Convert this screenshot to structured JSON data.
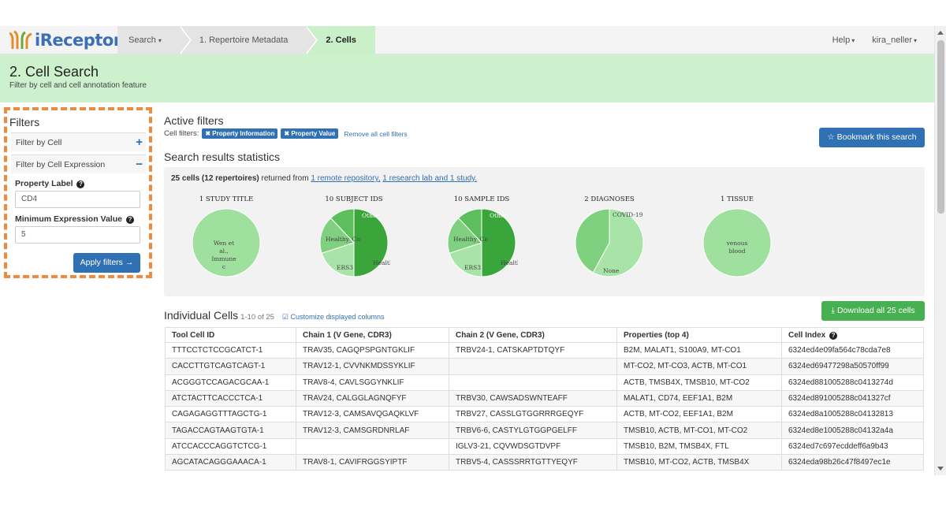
{
  "navbar": {
    "logo_text": "iReceptor",
    "crumbs": [
      {
        "label": "Search",
        "caret": "▾"
      },
      {
        "label": "1. Repertoire Metadata"
      },
      {
        "label": "2. Cells"
      }
    ],
    "help_label": "Help",
    "user_label": "kira_neller",
    "caret": "▾"
  },
  "header": {
    "title": "2. Cell Search",
    "subtitle": "Filter by cell and cell annotation feature"
  },
  "filters": {
    "title": "Filters",
    "row1_label": "Filter by Cell",
    "row1_ctl": "+",
    "row2_label": "Filter by Cell Expression",
    "row2_ctl": "−",
    "property_label": "Property Label",
    "property_value": "CD4",
    "min_label": "Minimum Expression Value",
    "min_value": "5",
    "apply_label": "Apply filters →",
    "help_glyph": "?"
  },
  "active_filters": {
    "title": "Active filters",
    "prefix": "Cell filters:",
    "tags": [
      "✖ Property Information",
      "✖ Property Value"
    ],
    "remove_label": "Remove all cell filters",
    "bookmark_label": "☆ Bookmark this search"
  },
  "stats": {
    "title": "Search results statistics",
    "summary_bold": "25 cells (12 repertoires)",
    "summary_mid": " returned from ",
    "link1": "1 remote repository,",
    "link2": "1 research lab and 1 study.",
    "pies": [
      {
        "title": "1 STUDY TITLE",
        "colors": [
          "#9fe09f"
        ],
        "values": [
          1
        ],
        "labels": [
          "Wen et",
          "al.,",
          "Immune",
          "c"
        ]
      },
      {
        "title": "10 SUBJECT IDS",
        "colors": [
          "#3aa53a",
          "#a8e4a8",
          "#7fd07f",
          "#5cbf5c"
        ],
        "values": [
          0.5,
          0.2,
          0.18,
          0.12
        ],
        "labels": [
          "Other",
          "Healthy_Co",
          "ERS3",
          "Healthy_Co"
        ]
      },
      {
        "title": "10 SAMPLE IDS",
        "colors": [
          "#3aa53a",
          "#a8e4a8",
          "#7fd07f",
          "#5cbf5c"
        ],
        "values": [
          0.5,
          0.2,
          0.18,
          0.12
        ],
        "labels": [
          "Other",
          "Healthy_Co",
          "ERS3",
          "Healthy_Co"
        ]
      },
      {
        "title": "2 DIAGNOSES",
        "colors": [
          "#a8e4a8",
          "#7fd07f"
        ],
        "values": [
          0.58,
          0.42
        ],
        "labels": [
          "None",
          "COVID-19"
        ]
      },
      {
        "title": "1 TISSUE",
        "colors": [
          "#9fe09f"
        ],
        "values": [
          1
        ],
        "labels": [
          "venous",
          "blood"
        ]
      }
    ]
  },
  "individual": {
    "title": "Individual Cells",
    "range": "1-10 of 25",
    "customize_label": "Customize displayed columns",
    "download_label": "Download all 25 cells",
    "columns": [
      "Tool Cell ID",
      "Chain 1 (V Gene, CDR3)",
      "Chain 2 (V Gene, CDR3)",
      "Properties (top 4)",
      "Cell Index"
    ],
    "rows": [
      [
        "TTTCCTCTCCGCATCT-1",
        "TRAV35, CAGQPSPGNTGKLIF",
        "TRBV24-1, CATSKAPTDTQYF",
        "B2M, MALAT1, S100A9, MT-CO1",
        "6324ed4e09fa564c78cda7e8"
      ],
      [
        "CACCTTGTCAGTCAGT-1",
        "TRAV12-1, CVVNKMDSSYKLIF",
        "",
        "MT-CO2, MT-CO3, ACTB, MT-CO1",
        "6324ed69477298a50570ff99"
      ],
      [
        "ACGGGTCCAGACGCAA-1",
        "TRAV8-4, CAVLSGGYNKLIF",
        "",
        "ACTB, TMSB4X, TMSB10, MT-CO2",
        "6324ed881005288c0413274d"
      ],
      [
        "ATCTACTTCACCCTCA-1",
        "TRAV24, CALGGLAGNQFYF",
        "TRBV30, CAWSADSWNTEAFF",
        "MALAT1, CD74, EEF1A1, B2M",
        "6324ed891005288c041327cf"
      ],
      [
        "CAGAGAGGTTTAGCTG-1",
        "TRAV12-3, CAMSAVQGAQKLVF",
        "TRBV27, CASSLGTGGRRRGEQYF",
        "ACTB, MT-CO2, EEF1A1, B2M",
        "6324ed8a1005288c04132813"
      ],
      [
        "TAGACCAGTAAGTGTA-1",
        "TRAV12-3, CAMSGRDNRLAF",
        "TRBV6-6, CASTYLGTGGPGELFF",
        "TMSB10, ACTB, MT-CO1, MT-CO2",
        "6324ed8e1005288c04132a4a"
      ],
      [
        "ATCCACCCAGGTCTCG-1",
        "",
        "IGLV3-21, CQVWDSGTDVPF",
        "TMSB10, B2M, TMSB4X, FTL",
        "6324ed7c697ecddeff6a9b43"
      ],
      [
        "AGCATACAGGGAAACA-1",
        "TRAV8-1, CAVIFRGGSYIPTF",
        "TRBV5-4, CASSSRRTGTTYEQYF",
        "TMSB10, MT-CO2, ACTB, TMSB4X",
        "6324eda98b26c47f8497ec1e"
      ]
    ]
  },
  "colors": {
    "accent_blue": "#3070b4",
    "header_green": "#cdf1cd",
    "download_green": "#47b051",
    "highlight_orange": "#ef8a3c"
  }
}
